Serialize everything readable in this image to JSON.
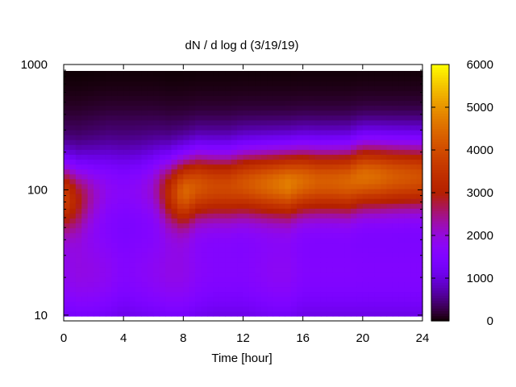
{
  "chart_data": {
    "type": "heatmap",
    "title": "dN / d log d (3/19/19)",
    "xlabel": "Time [hour]",
    "ylabel": "",
    "xlim": [
      0,
      24
    ],
    "ylim": [
      9,
      1000
    ],
    "y_scale": "log",
    "x_ticks": [
      0,
      4,
      8,
      12,
      16,
      20,
      24
    ],
    "x_tick_labels": [
      "0",
      "4",
      "8",
      "12",
      "16",
      "20",
      "24"
    ],
    "y_ticks": [
      10,
      100,
      1000
    ],
    "y_tick_labels": [
      "10",
      "100",
      "1000"
    ],
    "colorbar": {
      "range": [
        0,
        6000
      ],
      "ticks": [
        0,
        1000,
        2000,
        3000,
        4000,
        5000,
        6000
      ],
      "tick_labels": [
        "0",
        "1000",
        "2000",
        "3000",
        "4000",
        "5000",
        "6000"
      ],
      "palette": "black-blue-purple-red-orange-yellow"
    },
    "grid": false,
    "x_hours": [
      0,
      1,
      2,
      3,
      4,
      5,
      6,
      7,
      8,
      9,
      10,
      11,
      12,
      13,
      14,
      15,
      16,
      17,
      18,
      19,
      20,
      21,
      22,
      23,
      24
    ],
    "peak_diameter": [
      90,
      90,
      100,
      110,
      110,
      110,
      110,
      100,
      100,
      110,
      110,
      110,
      115,
      115,
      115,
      115,
      120,
      120,
      120,
      120,
      130,
      130,
      130,
      130,
      130
    ],
    "peak_value": [
      3500,
      2600,
      1900,
      1600,
      1500,
      1600,
      1900,
      3000,
      4200,
      4000,
      3800,
      3800,
      4000,
      4200,
      4400,
      4600,
      4400,
      4200,
      4200,
      4300,
      4500,
      4400,
      4200,
      4100,
      4000
    ],
    "background_level": [
      1600,
      1700,
      1700,
      1600,
      1400,
      1500,
      1600,
      1700,
      1700,
      1500,
      1400,
      1400,
      1400,
      1500,
      1600,
      1600,
      1400,
      1400,
      1400,
      1400,
      1400,
      1400,
      1400,
      1400,
      1400
    ],
    "description_levels": "high concentration (3000-4800) between 50 and 250 nm after 7h; low (<500) above 500 nm"
  }
}
